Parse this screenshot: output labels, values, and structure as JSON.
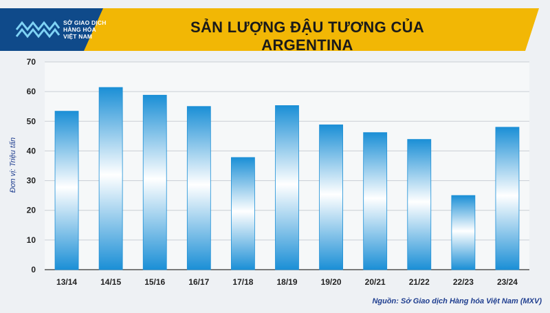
{
  "header": {
    "logo_icon": "mxv-logo-icon",
    "logo_lines": [
      "SỞ GIAO DỊCH",
      "HÀNG HÓA",
      "VIỆT NAM"
    ],
    "title": "SẢN LƯỢNG ĐẬU TƯƠNG CỦA ARGENTINA"
  },
  "footer": {
    "source": "Nguồn: Sở Giao dịch Hàng hóa Việt Nam (MXV)"
  },
  "colors": {
    "banner": "#f2b705",
    "banner_dark": "#0f4a8a",
    "bar_edge": "#1b8fd6",
    "bar_light": "#ffffff",
    "source_text": "#1f3e8f"
  },
  "chart_data": {
    "type": "bar",
    "title": "SẢN LƯỢNG ĐẬU TƯƠNG CỦA ARGENTINA",
    "xlabel": "",
    "ylabel": "Đơn vị: Triệu tấn",
    "categories": [
      "13/14",
      "14/15",
      "15/16",
      "16/17",
      "17/18",
      "18/19",
      "19/20",
      "20/21",
      "21/22",
      "22/23",
      "23/24"
    ],
    "values": [
      53.4,
      61.4,
      58.8,
      55.0,
      37.8,
      55.3,
      48.8,
      46.2,
      43.9,
      25.0,
      48.0
    ],
    "ylim": [
      0,
      70
    ],
    "yticks": [
      0,
      10,
      20,
      30,
      40,
      50,
      60,
      70
    ],
    "grid": true,
    "legend": "none"
  }
}
